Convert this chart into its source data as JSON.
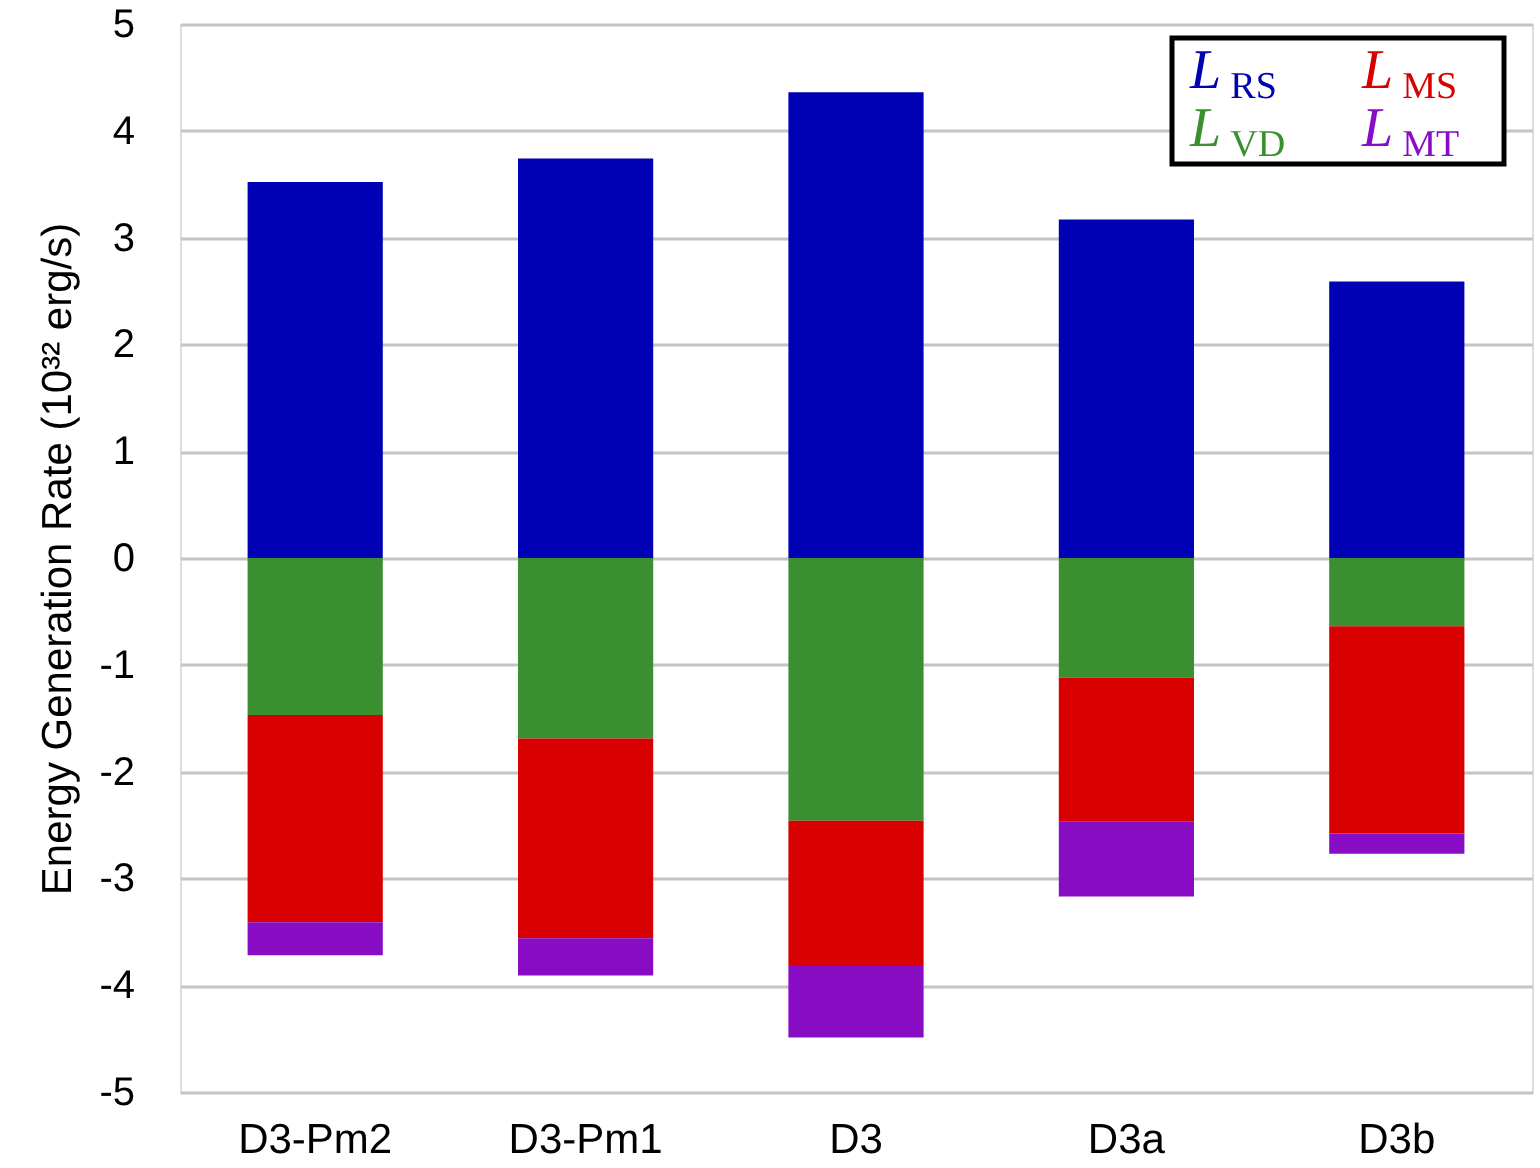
{
  "chart_data": {
    "type": "bar",
    "stacked": true,
    "ylabel": "Energy Generation Rate (10³² erg/s)",
    "categories": [
      "D3-Pm2",
      "D3-Pm1",
      "D3",
      "D3a",
      "D3b"
    ],
    "series": [
      {
        "name": "L$_{RS}$",
        "color": "#0000b4",
        "values": [
          3.52,
          3.74,
          4.36,
          3.17,
          2.59
        ]
      },
      {
        "name": "L$_{VD}$",
        "color": "#3a9030",
        "values": [
          -1.47,
          -1.69,
          -2.46,
          -1.12,
          -0.64
        ]
      },
      {
        "name": "L$_{MS}$",
        "color": "#d80000",
        "values": [
          -1.94,
          -1.87,
          -1.36,
          -1.35,
          -1.94
        ]
      },
      {
        "name": "L$_{MT}$",
        "color": "#880cc4",
        "values": [
          -0.31,
          -0.35,
          -0.67,
          -0.7,
          -0.19
        ]
      }
    ],
    "ylim": [
      -5,
      5
    ],
    "yticks": [
      -5,
      -4,
      -3,
      -2,
      -1,
      0,
      1,
      2,
      3,
      4,
      5
    ],
    "grid": "y",
    "legend": "top right"
  }
}
